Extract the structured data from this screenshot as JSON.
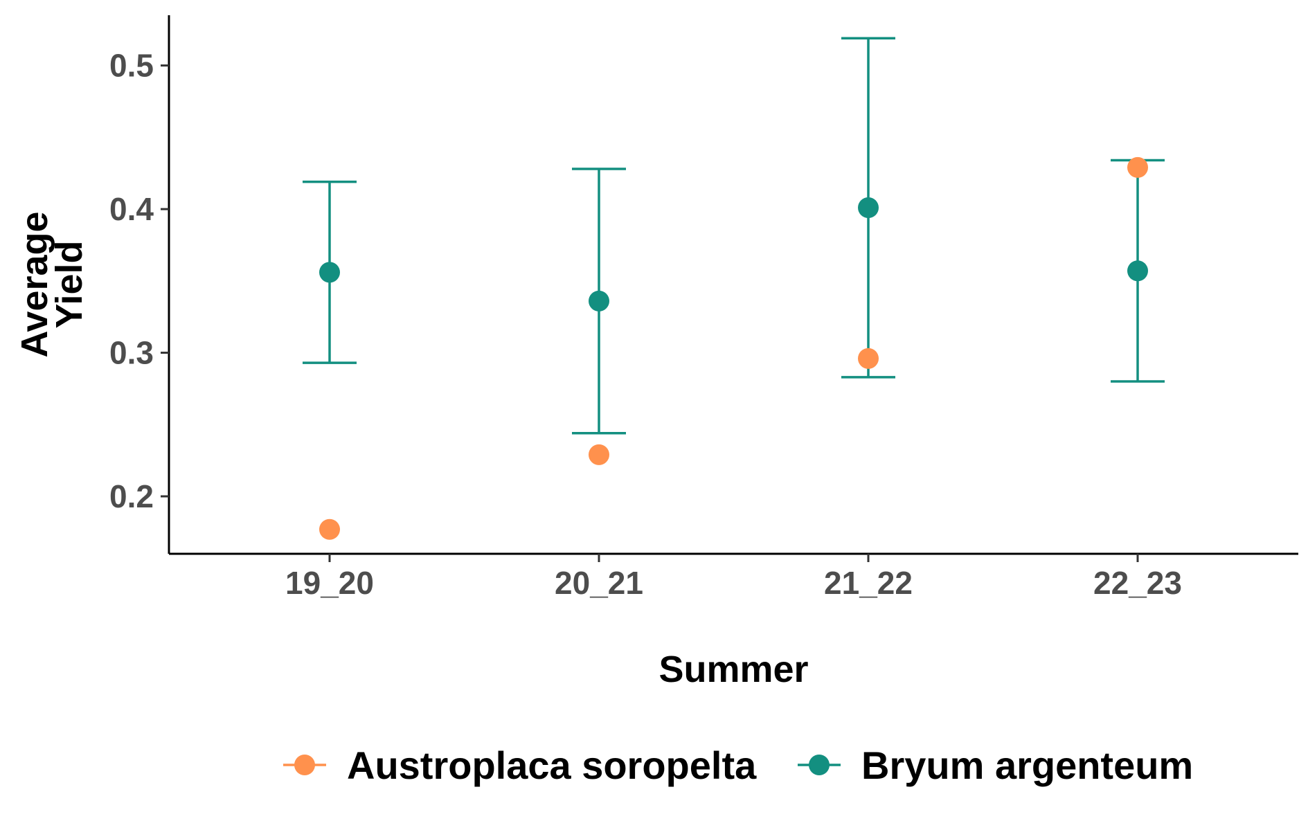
{
  "chart_data": {
    "type": "scatter",
    "title": "",
    "xlabel": "Summer",
    "ylabel": "Average\nYield",
    "categories": [
      "19_20",
      "20_21",
      "21_22",
      "22_23"
    ],
    "ylim": [
      0.16,
      0.535
    ],
    "yticks": [
      0.2,
      0.3,
      0.4,
      0.5
    ],
    "ytick_labels": [
      "0.2",
      "0.3",
      "0.4",
      "0.5"
    ],
    "grid": false,
    "legend_position": "bottom",
    "series": [
      {
        "name": "Austroplaca soropelta",
        "color": "#FF914D",
        "values": [
          0.177,
          0.229,
          0.296,
          0.429
        ],
        "error_bars": null
      },
      {
        "name": "Bryum argenteum",
        "color": "#138F80",
        "values": [
          0.356,
          0.336,
          0.401,
          0.357
        ],
        "error_bars": [
          [
            0.293,
            0.419
          ],
          [
            0.244,
            0.428
          ],
          [
            0.283,
            0.519
          ],
          [
            0.28,
            0.434
          ]
        ]
      }
    ]
  }
}
